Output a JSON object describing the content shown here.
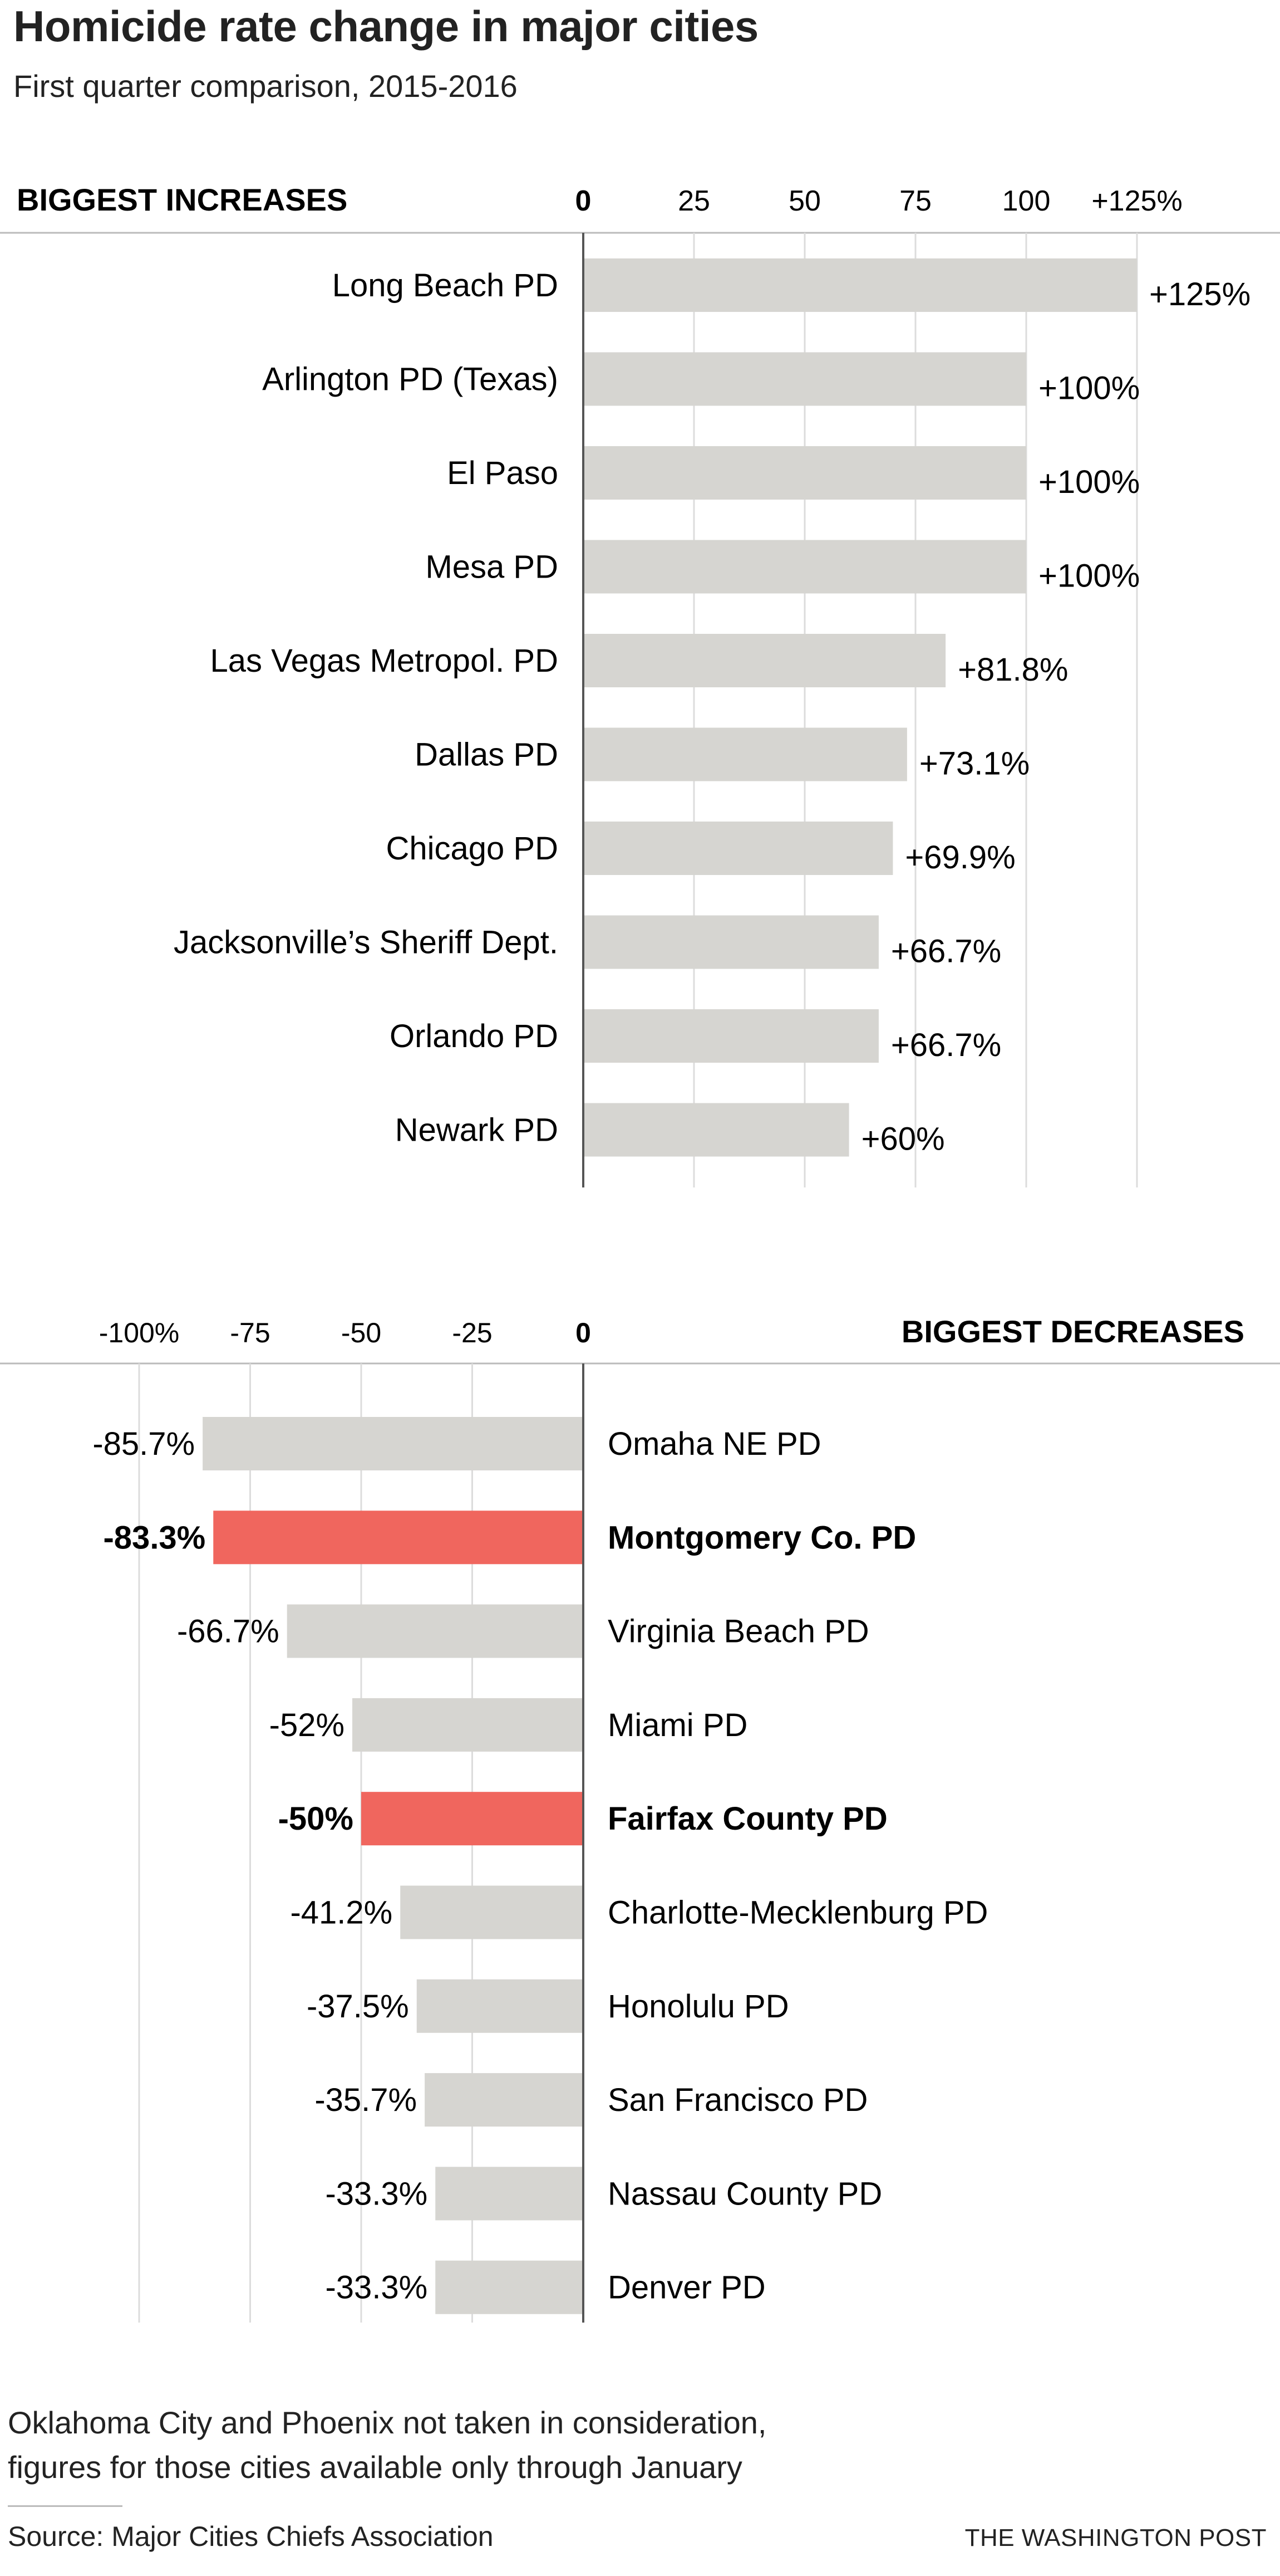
{
  "header": {
    "title": "Homicide rate change in major cities",
    "subtitle": "First quarter comparison, 2015-2016"
  },
  "chart_data": [
    {
      "type": "bar",
      "orientation": "horizontal",
      "title": "BIGGEST INCREASES",
      "xlim": [
        0,
        125
      ],
      "ticks": [
        0,
        25,
        50,
        75,
        100,
        125
      ],
      "tick_labels": [
        "0",
        "25",
        "50",
        "75",
        "100",
        "+125%"
      ],
      "grid": true,
      "bar_color": "#d6d5d1",
      "categories": [
        "Long Beach PD",
        "Arlington PD (Texas)",
        "El Paso",
        "Mesa PD",
        "Las Vegas Metropol. PD",
        "Dallas PD",
        "Chicago PD",
        "Jacksonville’s Sheriff Dept.",
        "Orlando PD",
        "Newark PD"
      ],
      "values": [
        125,
        100,
        100,
        100,
        81.8,
        73.1,
        69.9,
        66.7,
        66.7,
        60
      ],
      "value_labels": [
        "+125%",
        "+100%",
        "+100%",
        "+100%",
        "+81.8%",
        "+73.1%",
        "+69.9%",
        "+66.7%",
        "+66.7%",
        "+60%"
      ]
    },
    {
      "type": "bar",
      "orientation": "horizontal",
      "title": "BIGGEST DECREASES",
      "xlim": [
        -100,
        0
      ],
      "ticks": [
        -100,
        -75,
        -50,
        -25,
        0
      ],
      "tick_labels": [
        "-100%",
        "-75",
        "-50",
        "-25",
        "0"
      ],
      "grid": true,
      "bar_color": "#d6d5d1",
      "highlight_color": "#f0665e",
      "categories": [
        "Omaha NE PD",
        "Montgomery Co. PD",
        "Virginia Beach PD",
        "Miami PD",
        "Fairfax County PD",
        "Charlotte-Mecklenburg PD",
        "Honolulu PD",
        "San Francisco PD",
        "Nassau County PD",
        "Denver PD"
      ],
      "values": [
        -85.7,
        -83.3,
        -66.7,
        -52,
        -50,
        -41.2,
        -37.5,
        -35.7,
        -33.3,
        -33.3
      ],
      "value_labels": [
        "-85.7%",
        "-83.3%",
        "-66.7%",
        "-52%",
        "-50%",
        "-41.2%",
        "-37.5%",
        "-35.7%",
        "-33.3%",
        "-33.3%"
      ],
      "highlighted": [
        false,
        true,
        false,
        false,
        true,
        false,
        false,
        false,
        false,
        false
      ]
    }
  ],
  "footer": {
    "note_line1": "Oklahoma City and Phoenix not taken in consideration,",
    "note_line2": "figures for those cities available only through January",
    "source": "Source: Major Cities Chiefs Association",
    "credit": "THE WASHINGTON POST"
  }
}
